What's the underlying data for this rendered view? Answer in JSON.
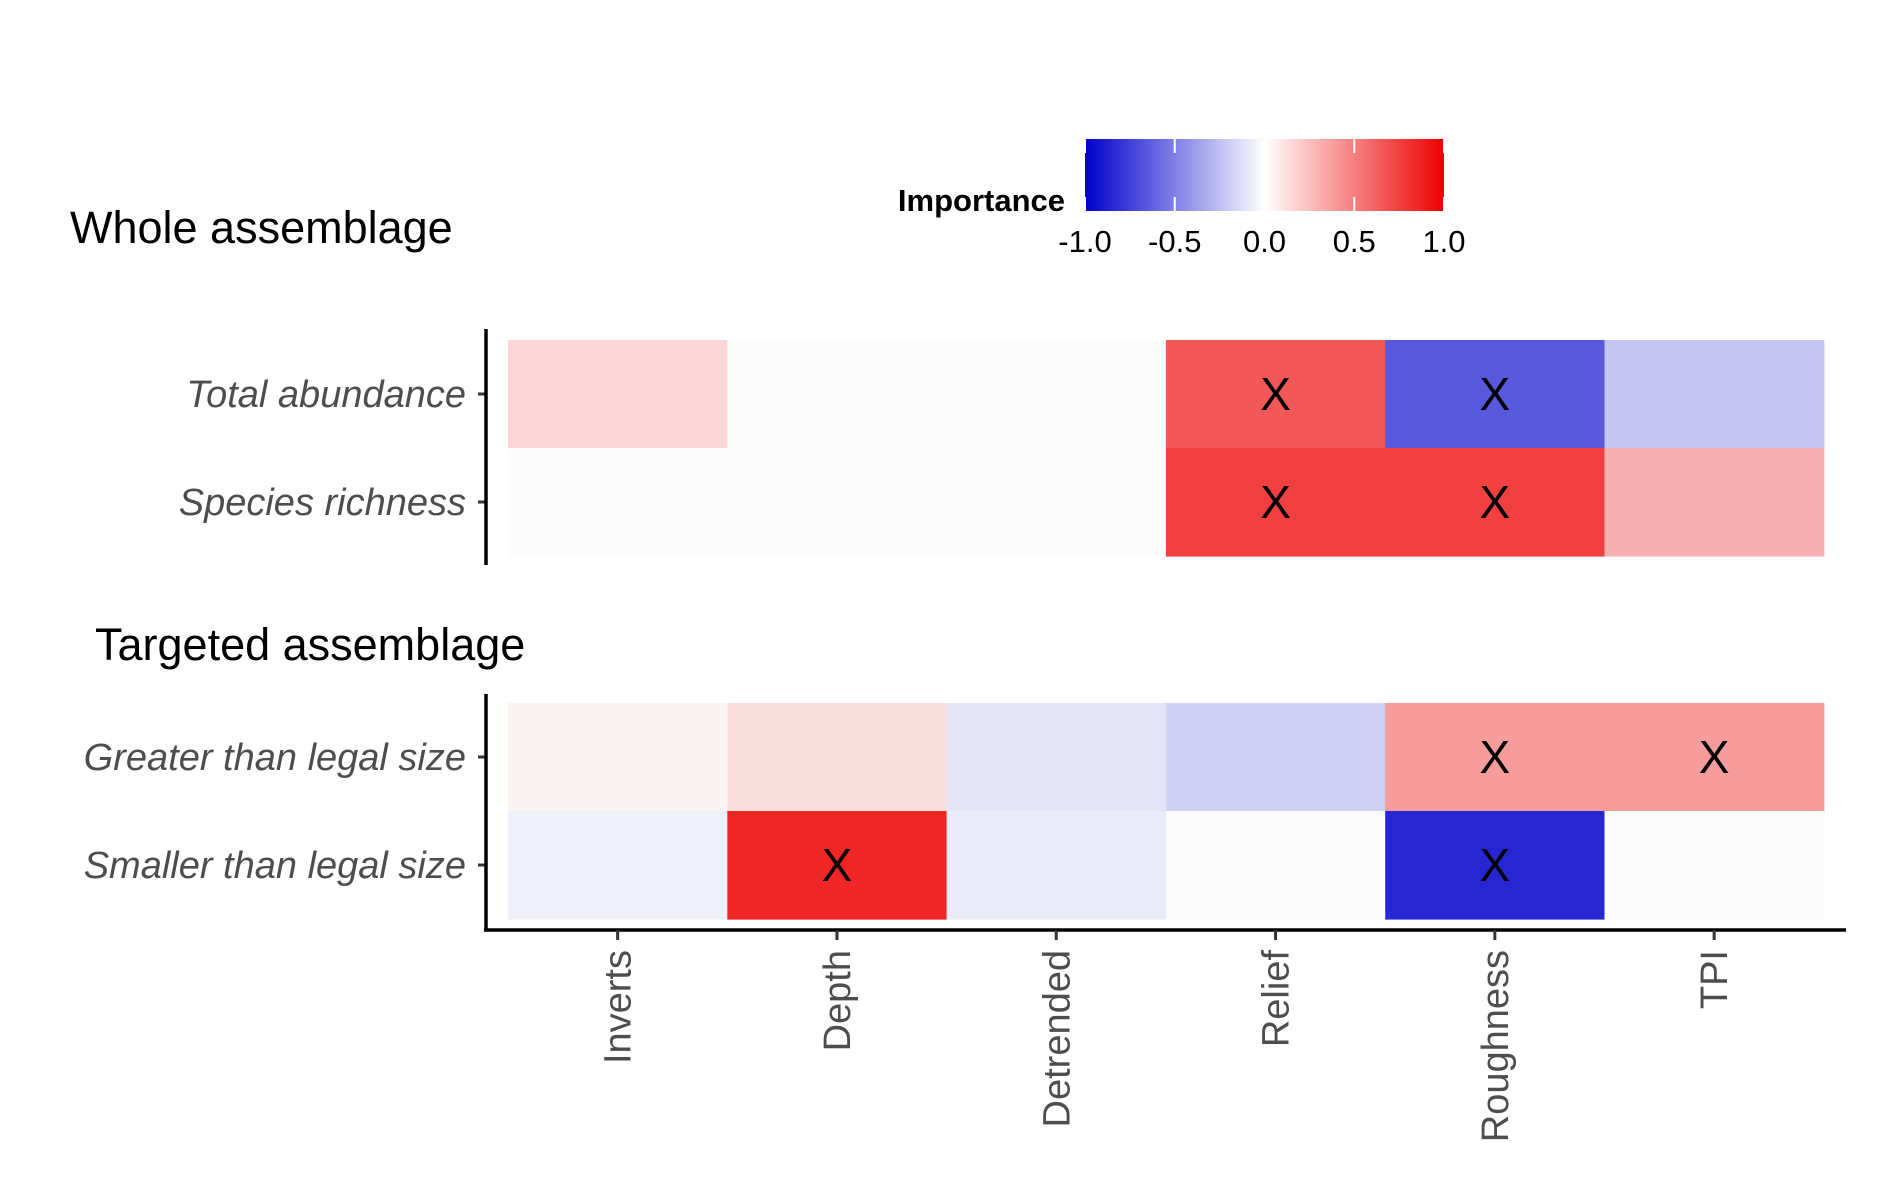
{
  "chart_data": {
    "type": "heatmap",
    "legend": {
      "title": "Importance",
      "position": "top",
      "range": [
        -1,
        1
      ],
      "ticks": [
        -1.0,
        -0.5,
        0.0,
        0.5,
        1.0
      ],
      "tick_labels": [
        "-1.0",
        "-0.5",
        "0.0",
        "0.5",
        "1.0"
      ],
      "colors": {
        "low": "#0000cc",
        "mid": "#ffffff",
        "high": "#ee0000"
      }
    },
    "columns": [
      "Inverts",
      "Depth",
      "Detrended",
      "Relief",
      "Roughness",
      "TPI"
    ],
    "panels": [
      {
        "title": "Whole assemblage",
        "rows": [
          "Total abundance",
          "Species richness"
        ],
        "values": [
          [
            0.15,
            0.0,
            0.0,
            0.65,
            -0.65,
            -0.22
          ],
          [
            0.0,
            0.0,
            0.0,
            0.75,
            0.75,
            0.3
          ]
        ],
        "significant": [
          [
            false,
            false,
            false,
            true,
            true,
            false
          ],
          [
            false,
            false,
            false,
            true,
            true,
            false
          ]
        ]
      },
      {
        "title": "Targeted assemblage",
        "rows": [
          "Greater than legal size",
          "Smaller than legal size"
        ],
        "values": [
          [
            0.04,
            0.12,
            -0.09,
            -0.17,
            0.38,
            0.38
          ],
          [
            -0.05,
            0.85,
            -0.07,
            0.0,
            -0.85,
            0.0
          ]
        ],
        "significant": [
          [
            false,
            false,
            false,
            false,
            true,
            true
          ],
          [
            false,
            true,
            false,
            false,
            true,
            false
          ]
        ]
      }
    ],
    "significance_marker": "X",
    "grid": false
  }
}
